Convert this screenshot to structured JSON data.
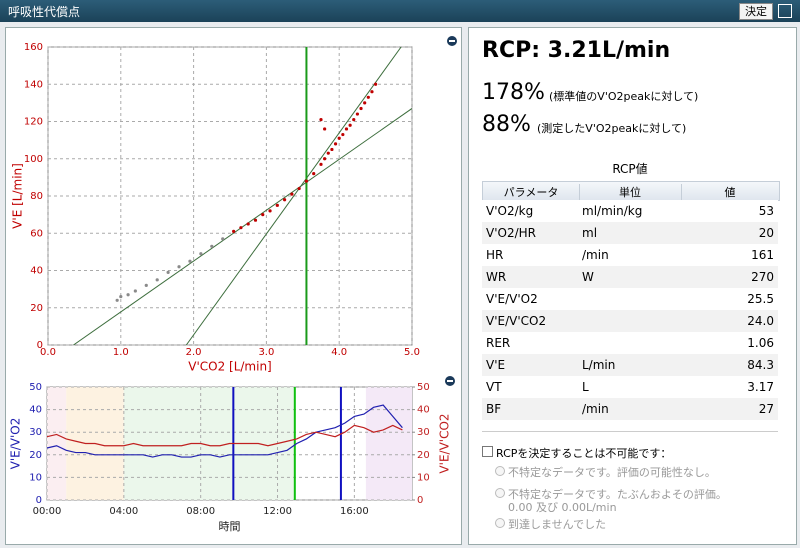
{
  "window": {
    "title": "呼吸性代償点",
    "button": "決定"
  },
  "scatter_chart": {
    "type": "scatter",
    "xlabel": "V'CO2 [L/min]",
    "ylabel": "V'E [L/min]",
    "xlim": [
      0,
      5
    ],
    "ylim": [
      0,
      160
    ],
    "xticks": [
      {
        "value": 0,
        "label": "0.0"
      },
      {
        "value": 1,
        "label": "1.0"
      },
      {
        "value": 2,
        "label": "2.0"
      },
      {
        "value": 3,
        "label": "3.0"
      },
      {
        "value": 4,
        "label": "4.0"
      },
      {
        "value": 5,
        "label": "5.0"
      }
    ],
    "yticks": [
      0,
      20,
      40,
      60,
      80,
      100,
      120,
      140,
      160
    ],
    "grid": true,
    "series": [
      {
        "color": "#8a8a8a",
        "x": [
          0.95,
          1.0,
          1.1,
          1.2,
          1.35,
          1.5,
          1.65,
          1.8,
          1.95,
          2.1,
          2.25,
          2.4
        ],
        "y": [
          24,
          26,
          27,
          29,
          32,
          35,
          39,
          42,
          45,
          49,
          53,
          57
        ]
      },
      {
        "color": "#c00000",
        "x": [
          2.55,
          2.65,
          2.75,
          2.85,
          2.95,
          3.05,
          3.15,
          3.25,
          3.35,
          3.45,
          3.55,
          3.65,
          3.75,
          3.8,
          3.85,
          3.9,
          3.95,
          4.0,
          4.05,
          4.1,
          4.15,
          4.2,
          4.25,
          4.3,
          4.35,
          4.4,
          4.45,
          4.5,
          3.75,
          3.8
        ],
        "y": [
          61,
          63,
          65,
          67,
          70,
          72,
          75,
          78,
          81,
          84,
          88,
          92,
          97,
          100,
          103,
          105,
          108,
          111,
          113,
          116,
          118,
          121,
          124,
          127,
          130,
          133,
          136,
          140,
          121,
          116
        ]
      }
    ],
    "fit_lines": [
      {
        "color": "#3d6e3d",
        "x": [
          0.35,
          5.0
        ],
        "y": [
          0,
          127
        ]
      },
      {
        "color": "#3d6e3d",
        "x": [
          1.9,
          4.85
        ],
        "y": [
          0,
          160
        ]
      }
    ],
    "rcp_line": {
      "x": 3.55,
      "color": "#1a9a1a"
    }
  },
  "time_chart": {
    "type": "line",
    "xlabel": "時間",
    "ylabel": "V'E/V'O2",
    "y2label": "V'E/V'CO2",
    "xlim": [
      0,
      19
    ],
    "xticks": [
      {
        "value": 0,
        "label": "00:00"
      },
      {
        "value": 4,
        "label": "04:00"
      },
      {
        "value": 8,
        "label": "08:00"
      },
      {
        "value": 12,
        "label": "12:00"
      },
      {
        "value": 16,
        "label": "16:00"
      }
    ],
    "ylim": [
      0,
      50
    ],
    "yticks": [
      0,
      10,
      20,
      30,
      40,
      50
    ],
    "y2lim": [
      0,
      50
    ],
    "y2ticks": [
      0,
      10,
      20,
      30,
      40,
      50
    ],
    "grid": true,
    "x": [
      0,
      0.5,
      1,
      1.5,
      2,
      2.5,
      3,
      3.5,
      4,
      4.5,
      5,
      5.5,
      6,
      6.5,
      7,
      7.5,
      8,
      8.5,
      9,
      9.5,
      10,
      10.5,
      11,
      11.5,
      12,
      12.5,
      13,
      13.5,
      14,
      14.5,
      15,
      15.5,
      16,
      16.5,
      17,
      17.5,
      18,
      18.5
    ],
    "series": [
      {
        "color": "#2020b0",
        "values": [
          23,
          24,
          22,
          21,
          21,
          20,
          20,
          20,
          20,
          20,
          20,
          19,
          20,
          20,
          19,
          19,
          20,
          20,
          19,
          20,
          20,
          20,
          20,
          20,
          21,
          22,
          25,
          27,
          30,
          31,
          32,
          34,
          37,
          38,
          41,
          42,
          37,
          32
        ]
      },
      {
        "color": "#c02020",
        "axis": "y2",
        "values": [
          28,
          29,
          27,
          26,
          25,
          25,
          24,
          24,
          24,
          25,
          24,
          24,
          24,
          24,
          24,
          25,
          25,
          24,
          24,
          25,
          25,
          25,
          25,
          24,
          25,
          26,
          27,
          29,
          30,
          29,
          28,
          30,
          33,
          32,
          30,
          31,
          33,
          31
        ]
      }
    ],
    "phases": [
      {
        "start": 0,
        "end": 1,
        "color": "#fbeef1"
      },
      {
        "start": 1,
        "end": 4,
        "color": "#fdf2e1"
      },
      {
        "start": 4,
        "end": 12.9,
        "color": "#ebf7eb"
      },
      {
        "start": 16.6,
        "end": 19,
        "color": "#f4e9f7"
      }
    ],
    "markers": [
      {
        "x": 9.7,
        "color": "#1010c0"
      },
      {
        "x": 12.9,
        "color": "#10c010"
      },
      {
        "x": 15.3,
        "color": "#1010c0"
      }
    ]
  },
  "result": {
    "rcp": "RCP: 3.21L/min",
    "pct1": "178%",
    "pct1_note": "(標準値のV'O2peakに対して)",
    "pct2": "88%",
    "pct2_note": "(測定したV'O2peakに対して)"
  },
  "table": {
    "title": "RCP値",
    "columns": [
      "パラメータ",
      "単位",
      "値"
    ],
    "rows": [
      [
        "V'O2/kg",
        "ml/min/kg",
        "53"
      ],
      [
        "V'O2/HR",
        "ml",
        "20"
      ],
      [
        "HR",
        "/min",
        "161"
      ],
      [
        "WR",
        "W",
        "270"
      ],
      [
        "V'E/V'O2",
        "",
        "25.5"
      ],
      [
        "V'E/V'CO2",
        "",
        "24.0"
      ],
      [
        "RER",
        "",
        "1.06"
      ],
      [
        "V'E",
        "L/min",
        "84.3"
      ],
      [
        "VT",
        "L",
        "3.17"
      ],
      [
        "BF",
        "/min",
        "27"
      ]
    ]
  },
  "options": {
    "checkbox": "RCPを決定することは不可能です：",
    "radios": [
      [
        "不特定なデータです。評価の可能性なし。"
      ],
      [
        "不特定なデータです。たぶんおよその評価。",
        "0.00 及び 0.00L/min"
      ],
      [
        "到達しませんでした"
      ]
    ]
  }
}
